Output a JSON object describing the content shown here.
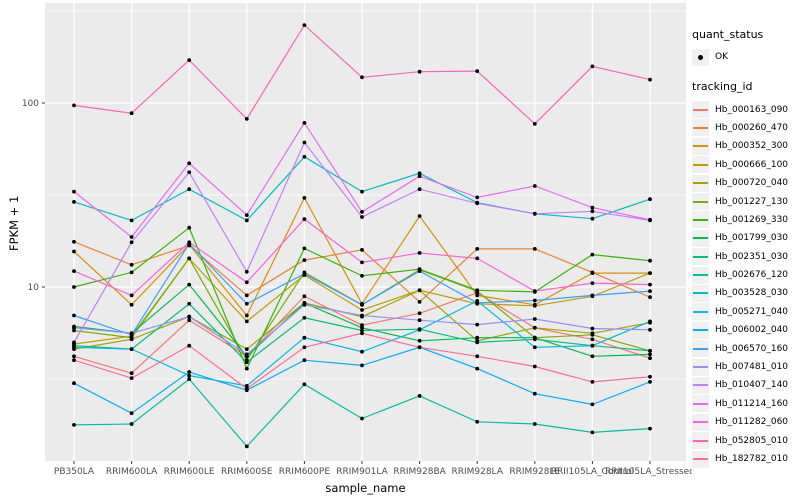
{
  "legend": {
    "quant_status_title": "quant_status",
    "quant_status_value": "OK",
    "tracking_title": "tracking_id"
  },
  "chart_data": {
    "type": "line",
    "title": "",
    "xlabel": "sample_name",
    "ylabel": "FPKM + 1",
    "y_scale": "log10",
    "ylim": [
      1.15,
      349
    ],
    "grid": "on",
    "legend_position": "right",
    "panel_bg": "#EBEBEB",
    "grid_color": "#FFFFFF",
    "point_color": "#000000",
    "tick_label_color": "#4d4d4d",
    "y_axis": {
      "ticks": [
        10,
        100
      ],
      "minor": [
        3.162,
        31.62,
        316.2
      ]
    },
    "x_categories": [
      "PB350LA",
      "RRIM600LA",
      "RRIM600LE",
      "RRIM600SE",
      "RRIM600PE",
      "RRIM901LA",
      "RRIM928BA",
      "RRIM928LA",
      "RRIM928LE",
      "RRII105LA_Control",
      "RRII105LA_Stressed"
    ],
    "series": [
      {
        "id": "Hb_000163_090",
        "color": "#F8766D",
        "values": [
          4.2,
          3.4,
          6.6,
          4.2,
          8.9,
          6.2,
          7.2,
          9.3,
          6.0,
          5.2,
          4.1
        ]
      },
      {
        "id": "Hb_000260_470",
        "color": "#EA8331",
        "values": [
          17.6,
          13.2,
          16.8,
          9.0,
          14.0,
          15.9,
          8.3,
          16.1,
          16.1,
          12.0,
          8.8
        ]
      },
      {
        "id": "Hb_000352_300",
        "color": "#D89000",
        "values": [
          15.6,
          8.0,
          17.0,
          7.0,
          30.5,
          8.1,
          24.3,
          9.0,
          8.0,
          11.9,
          11.9
        ]
      },
      {
        "id": "Hb_000666_100",
        "color": "#C09B00",
        "values": [
          4.9,
          5.4,
          14.3,
          6.5,
          11.6,
          7.5,
          9.6,
          8.1,
          7.9,
          8.9,
          11.9
        ]
      },
      {
        "id": "Hb_000720_040",
        "color": "#A3A500",
        "values": [
          4.6,
          5.2,
          6.9,
          4.6,
          8.2,
          6.9,
          9.6,
          5.1,
          6.0,
          5.6,
          6.4
        ]
      },
      {
        "id": "Hb_001227_130",
        "color": "#7CAE00",
        "values": [
          5.8,
          5.3,
          14.3,
          4.0,
          12.0,
          8.0,
          12.4,
          9.5,
          5.3,
          5.5,
          4.5
        ]
      },
      {
        "id": "Hb_001269_330",
        "color": "#39B600",
        "values": [
          10.0,
          12.0,
          21.0,
          3.6,
          16.2,
          11.5,
          12.5,
          9.6,
          9.4,
          15.0,
          13.9
        ]
      },
      {
        "id": "Hb_001799_030",
        "color": "#00BB4E",
        "values": [
          6.1,
          5.6,
          10.3,
          4.2,
          8.2,
          6.0,
          5.1,
          5.3,
          5.3,
          4.2,
          4.3
        ]
      },
      {
        "id": "Hb_002351_030",
        "color": "#00BF7D",
        "values": [
          4.8,
          4.6,
          8.1,
          3.9,
          6.8,
          5.8,
          5.9,
          5.0,
          5.2,
          4.8,
          4.5
        ]
      },
      {
        "id": "Hb_002676_120",
        "color": "#00C1A3",
        "values": [
          1.78,
          1.8,
          3.16,
          1.36,
          2.96,
          1.93,
          2.56,
          1.85,
          1.8,
          1.62,
          1.7
        ]
      },
      {
        "id": "Hb_003528_030",
        "color": "#00BFC4",
        "values": [
          29,
          23,
          34,
          23,
          51,
          33,
          41.5,
          28.7,
          25,
          23.5,
          30
        ]
      },
      {
        "id": "Hb_005271_040",
        "color": "#00BAE0",
        "values": [
          4.7,
          4.6,
          3.3,
          2.9,
          5.3,
          4.45,
          5.85,
          8.4,
          4.7,
          4.8,
          6.5
        ]
      },
      {
        "id": "Hb_006002_040",
        "color": "#00B0F6",
        "values": [
          3.0,
          2.06,
          3.45,
          2.75,
          4.0,
          3.75,
          4.7,
          3.6,
          2.63,
          2.3,
          3.05
        ]
      },
      {
        "id": "Hb_006570_160",
        "color": "#35A2FF",
        "values": [
          7.0,
          5.5,
          17.2,
          8.1,
          11.8,
          8.0,
          12.2,
          8.2,
          8.45,
          9.0,
          9.5
        ]
      },
      {
        "id": "Hb_007481_010",
        "color": "#9590FF",
        "values": [
          6.0,
          5.6,
          6.9,
          4.3,
          8.0,
          7.0,
          6.6,
          6.25,
          6.7,
          5.95,
          5.85
        ]
      },
      {
        "id": "Hb_010407_140",
        "color": "#C77CFF",
        "values": [
          5.0,
          17.5,
          42,
          12.1,
          61,
          24,
          34,
          28.5,
          25,
          25.8,
          23
        ]
      },
      {
        "id": "Hb_011214_160",
        "color": "#E76BF3",
        "values": [
          33,
          18.7,
          47,
          24.6,
          78,
          25.6,
          40,
          30.7,
          35.4,
          27,
          23.2
        ]
      },
      {
        "id": "Hb_011282_060",
        "color": "#FA62DB",
        "values": [
          12.2,
          9.0,
          17.5,
          10.6,
          23.4,
          13.6,
          15.3,
          14.3,
          9.5,
          10.5,
          10.3
        ]
      },
      {
        "id": "Hb_052805_010",
        "color": "#FF62BC",
        "values": [
          97,
          88,
          171,
          82,
          265,
          138,
          148,
          149,
          77,
          158,
          134
        ]
      },
      {
        "id": "Hb_182782_010",
        "color": "#FF6A98",
        "values": [
          4.0,
          3.2,
          4.8,
          2.8,
          4.7,
          5.6,
          4.7,
          4.2,
          3.7,
          3.05,
          3.25
        ]
      }
    ]
  }
}
